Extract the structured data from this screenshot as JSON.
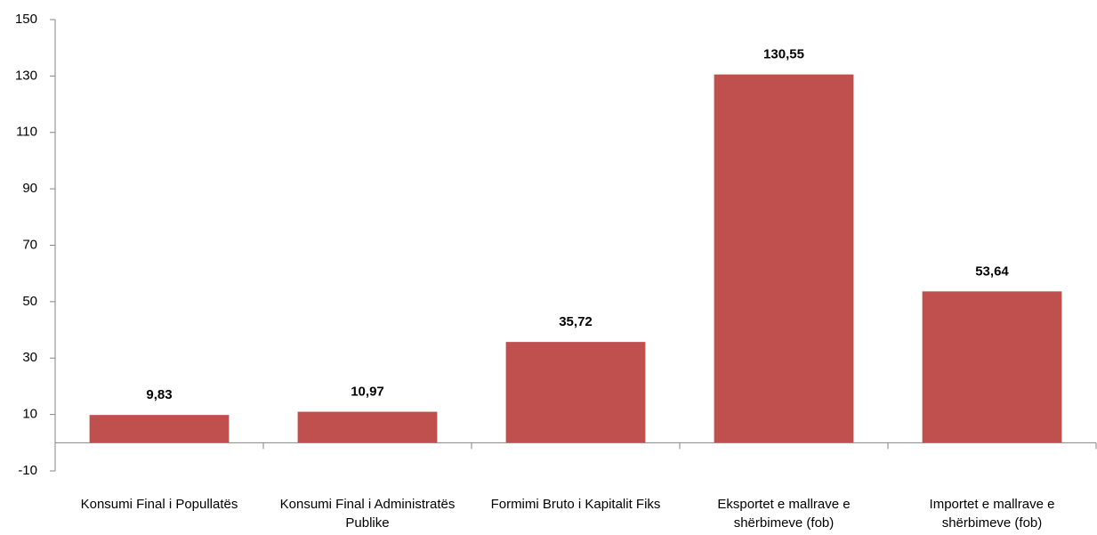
{
  "chart_data": {
    "type": "bar",
    "categories": [
      "Konsumi Final i Popullatës",
      "Konsumi Final i Administratës Publike",
      "Formimi Bruto i Kapitalit Fiks",
      "Eksportet e mallrave e shërbimeve (fob)",
      "Importet e mallrave e shërbimeve (fob)"
    ],
    "values": [
      9.83,
      10.97,
      35.72,
      130.55,
      53.64
    ],
    "value_labels": [
      "9,83",
      "10,97",
      "35,72",
      "130,55",
      "53,64"
    ],
    "color": "#c0504d",
    "ylim": [
      -10,
      150
    ],
    "yticks": [
      -10,
      10,
      30,
      50,
      70,
      90,
      110,
      130,
      150
    ],
    "grid": false
  }
}
